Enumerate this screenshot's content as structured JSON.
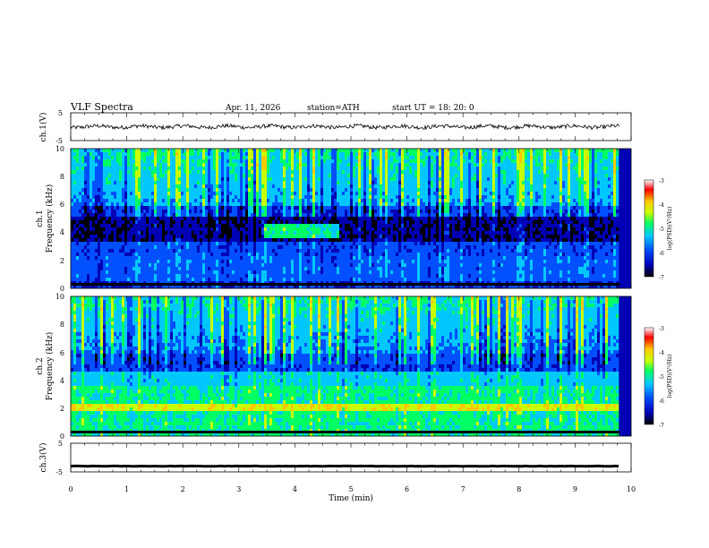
{
  "header": {
    "title": "VLF Spectra",
    "date": "Apr. 11, 2026",
    "station": "station=ATH",
    "start_ut": "start UT = 18: 20: 0"
  },
  "chart_data": [
    {
      "type": "line",
      "name": "ch1-waveform",
      "ylabel": "ch.1(V)",
      "ylim": [
        -5,
        5
      ],
      "yticks": [
        "5",
        "-5"
      ],
      "xlim": [
        0,
        10
      ],
      "baseline": 0
    },
    {
      "type": "heatmap",
      "name": "ch1-spectrogram",
      "ylabel_lines": [
        "ch.1",
        "Frequency (kHz)"
      ],
      "xlim": [
        0,
        10
      ],
      "ylim": [
        0,
        10
      ],
      "yticks": [
        "0",
        "2",
        "4",
        "6",
        "8",
        "10"
      ],
      "colorbar": {
        "label": "log(PSD)(V²/Hz)",
        "range": [
          -7,
          -3
        ],
        "ticks": [
          "-3",
          "-4",
          "-5",
          "-6",
          "-7"
        ]
      }
    },
    {
      "type": "heatmap",
      "name": "ch2-spectrogram",
      "ylabel_lines": [
        "ch.2",
        "Frequency (kHz)"
      ],
      "xlim": [
        0,
        10
      ],
      "ylim": [
        0,
        10
      ],
      "yticks": [
        "0",
        "2",
        "4",
        "6",
        "8",
        "10"
      ],
      "colorbar": {
        "label": "log(PSD)(V²/Hz)",
        "range": [
          -7,
          -3
        ],
        "ticks": [
          "-3",
          "-4",
          "-5",
          "-6",
          "-7"
        ]
      }
    },
    {
      "type": "line",
      "name": "ch3-waveform",
      "ylabel": "ch.3(V)",
      "ylim": [
        -5,
        5
      ],
      "yticks": [
        "5",
        "-5"
      ],
      "xlim": [
        0,
        10
      ],
      "baseline": -3
    }
  ],
  "xaxis": {
    "label": "Time (min)",
    "ticks": [
      "0",
      "1",
      "2",
      "3",
      "4",
      "5",
      "6",
      "7",
      "8",
      "9",
      "10"
    ]
  },
  "colors": {
    "colormap": [
      "#000000",
      "#0000b4",
      "#0050ff",
      "#00c8ff",
      "#00ff64",
      "#c8ff00",
      "#ffc800",
      "#ff0000",
      "#ffffff"
    ]
  }
}
